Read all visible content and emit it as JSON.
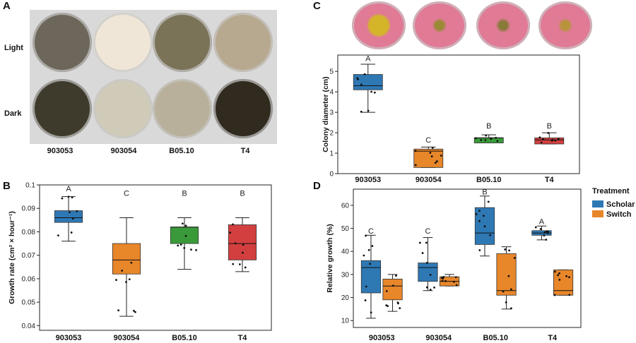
{
  "panelA": {
    "letter": "A",
    "rows": [
      "Light",
      "Dark"
    ],
    "strains": [
      "903053",
      "903054",
      "B05.10",
      "T4"
    ],
    "plate_colors": {
      "light": [
        "#6d665a",
        "#efe6d8",
        "#7a7358",
        "#b7a990"
      ],
      "dark": [
        "#3f3b2c",
        "#cfcbb8",
        "#b8b09a",
        "#302b1e"
      ]
    }
  },
  "panelC": {
    "letter": "C",
    "plate_colors": [
      "#e07a95",
      "#e07a95",
      "#e07a95",
      "#e07a95"
    ],
    "halo_colors": [
      "#d4b52a",
      "#9a8a35",
      "#8a7a3a",
      "#b8933a"
    ]
  },
  "chart_data": [
    {
      "id": "B",
      "type": "box",
      "ylabel": "Growth rate (cm² × hour⁻¹)",
      "ylim": [
        0.038,
        0.1
      ],
      "yticks": [
        0.04,
        0.05,
        0.06,
        0.07,
        0.08,
        0.09,
        0.1
      ],
      "ytick_labels": [
        "0.04",
        "0.05",
        "0.06",
        "0.07",
        "0.08",
        "0.09",
        "0.1"
      ],
      "categories": [
        "903053",
        "903054",
        "B05.10",
        "T4"
      ],
      "colors": [
        "#2e78b4",
        "#e8862a",
        "#3a9a3a",
        "#d33f3f"
      ],
      "boxes": [
        {
          "min": 0.076,
          "q1": 0.084,
          "median": 0.086,
          "q3": 0.089,
          "max": 0.095
        },
        {
          "min": 0.044,
          "q1": 0.062,
          "median": 0.068,
          "q3": 0.075,
          "max": 0.086
        },
        {
          "min": 0.064,
          "q1": 0.075,
          "median": 0.082,
          "q3": 0.082,
          "max": 0.086
        },
        {
          "min": 0.063,
          "q1": 0.068,
          "median": 0.075,
          "q3": 0.083,
          "max": 0.086
        }
      ],
      "letters": [
        "A",
        "C",
        "B",
        "B"
      ],
      "letter_y": [
        0.0985,
        0.0965,
        0.0965,
        0.0965
      ]
    },
    {
      "id": "C",
      "type": "box",
      "ylabel": "Colony diameter (cm)",
      "ylim": [
        0,
        5.8
      ],
      "yticks": [
        0,
        1,
        2,
        3,
        4,
        5
      ],
      "ytick_labels": [
        "0",
        "1",
        "2",
        "3",
        "4",
        "5"
      ],
      "categories": [
        "903053",
        "903054",
        "B05.10",
        "T4"
      ],
      "colors": [
        "#2e78b4",
        "#e8862a",
        "#3a9a3a",
        "#d33f3f"
      ],
      "boxes": [
        {
          "min": 3.0,
          "q1": 4.1,
          "median": 4.3,
          "q3": 4.85,
          "max": 5.35
        },
        {
          "min": 0.3,
          "q1": 0.3,
          "median": 1.1,
          "q3": 1.2,
          "max": 1.3
        },
        {
          "min": 1.5,
          "q1": 1.5,
          "median": 1.75,
          "q3": 1.75,
          "max": 1.9
        },
        {
          "min": 1.45,
          "q1": 1.45,
          "median": 1.65,
          "q3": 1.75,
          "max": 2.0
        }
      ],
      "letters": [
        "A",
        "C",
        "B",
        "B"
      ],
      "letter_y": [
        5.65,
        1.65,
        2.35,
        2.35
      ]
    },
    {
      "id": "D",
      "type": "box",
      "ylabel": "Relative growth (%)",
      "ylim": [
        7,
        67
      ],
      "yticks": [
        10,
        20,
        30,
        40,
        50,
        60
      ],
      "ytick_labels": [
        "10",
        "20",
        "30",
        "40",
        "50",
        "60"
      ],
      "categories": [
        "903053",
        "903054",
        "B05.10",
        "T4"
      ],
      "legend": {
        "title": "Treatment",
        "placement": "right"
      },
      "series": [
        {
          "name": "Scholar",
          "color": "#2e78b4",
          "boxes": [
            {
              "min": 11,
              "q1": 22,
              "median": 33,
              "q3": 36,
              "max": 47
            },
            {
              "min": 23,
              "q1": 27,
              "median": 33,
              "q3": 35,
              "max": 46
            },
            {
              "min": 38,
              "q1": 43,
              "median": 48,
              "q3": 59,
              "max": 64
            },
            {
              "min": 45,
              "q1": 47,
              "median": 48,
              "q3": 49,
              "max": 51
            }
          ]
        },
        {
          "name": "Switch",
          "color": "#e8862a",
          "boxes": [
            {
              "min": 14,
              "q1": 19,
              "median": 25,
              "q3": 28,
              "max": 30
            },
            {
              "min": 25,
              "q1": 25,
              "median": 27,
              "q3": 29,
              "max": 30
            },
            {
              "min": 15,
              "q1": 21,
              "median": 23,
              "q3": 39,
              "max": 42
            },
            {
              "min": 21,
              "q1": 21,
              "median": 23,
              "q3": 32,
              "max": 32
            }
          ]
        }
      ],
      "letters": [
        "C",
        "C",
        "B",
        "A"
      ],
      "letter_y": [
        49,
        49,
        66,
        53
      ]
    }
  ]
}
